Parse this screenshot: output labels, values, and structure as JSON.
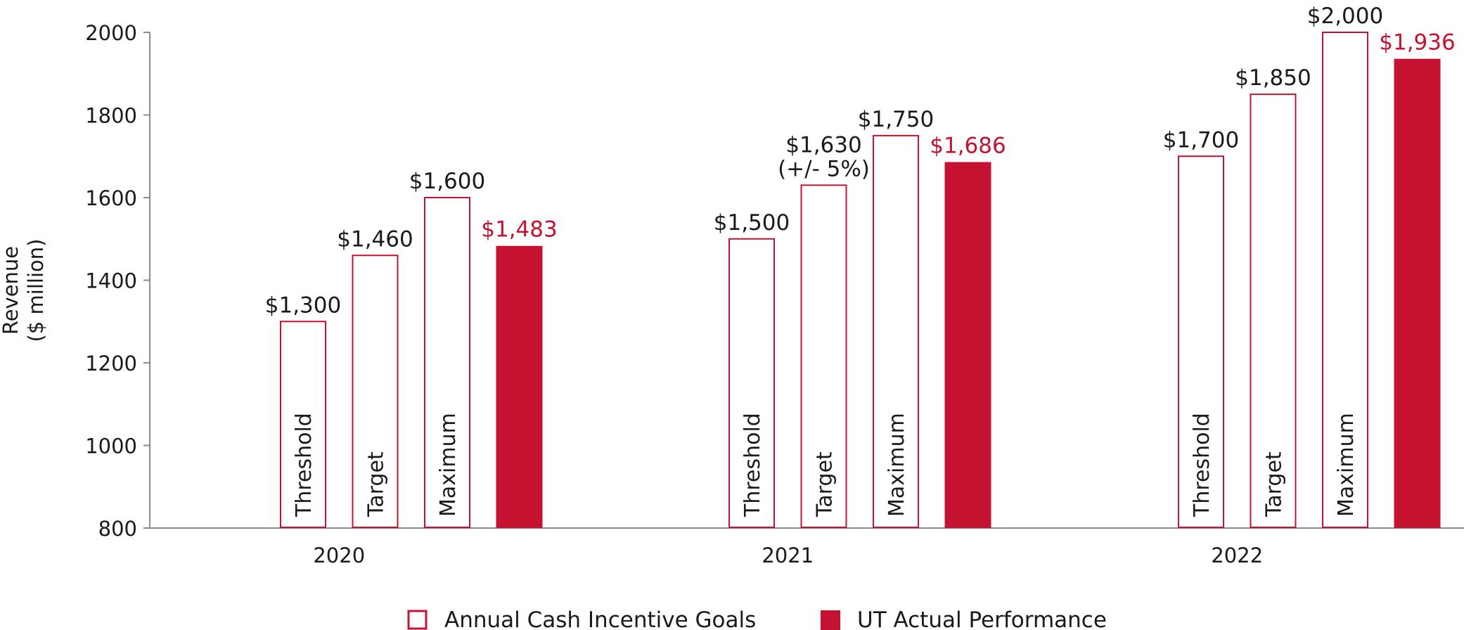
{
  "chart_data": {
    "type": "bar",
    "ylabel": [
      "Revenue",
      "($ million)"
    ],
    "ylim": [
      800,
      2000
    ],
    "yticks": [
      800,
      1000,
      1200,
      1400,
      1600,
      1800,
      2000
    ],
    "colors": {
      "accent": "#c41230",
      "axis": "#8c8c8c",
      "text": "#1a1a1a"
    },
    "groups": [
      {
        "label": "2020",
        "bars": [
          {
            "kind": "goal",
            "name": "Threshold",
            "value": 1300,
            "label": "$1,300"
          },
          {
            "kind": "goal",
            "name": "Target",
            "value": 1460,
            "label": "$1,460"
          },
          {
            "kind": "goal",
            "name": "Maximum",
            "value": 1600,
            "label": "$1,600"
          },
          {
            "kind": "actual",
            "name": "",
            "value": 1483,
            "label": "$1,483"
          }
        ]
      },
      {
        "label": "2021",
        "bars": [
          {
            "kind": "goal",
            "name": "Threshold",
            "value": 1500,
            "label": "$1,500"
          },
          {
            "kind": "goal",
            "name": "Target",
            "value": 1630,
            "label": "$1,630",
            "sublabel": "(+/- 5%)"
          },
          {
            "kind": "goal",
            "name": "Maximum",
            "value": 1750,
            "label": "$1,750"
          },
          {
            "kind": "actual",
            "name": "",
            "value": 1686,
            "label": "$1,686"
          }
        ]
      },
      {
        "label": "2022",
        "bars": [
          {
            "kind": "goal",
            "name": "Threshold",
            "value": 1700,
            "label": "$1,700"
          },
          {
            "kind": "goal",
            "name": "Target",
            "value": 1850,
            "label": "$1,850"
          },
          {
            "kind": "goal",
            "name": "Maximum",
            "value": 2000,
            "label": "$2,000"
          },
          {
            "kind": "actual",
            "name": "",
            "value": 1936,
            "label": "$1,936"
          }
        ]
      }
    ],
    "legend": {
      "position": "bottom-center",
      "entries": [
        {
          "kind": "goal",
          "label": "Annual Cash Incentive Goals"
        },
        {
          "kind": "actual",
          "label": "UT Actual Performance"
        }
      ]
    }
  }
}
